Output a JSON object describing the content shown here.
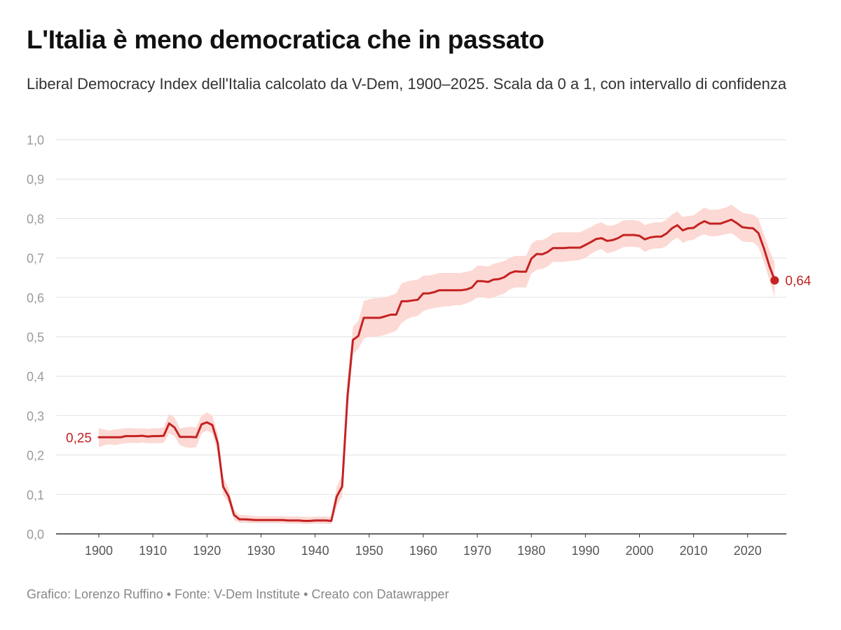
{
  "chart_data": {
    "type": "line",
    "title": "L'Italia è meno democratica che in passato",
    "subtitle": "Liberal Democracy Index dell'Italia calcolato da V-Dem, 1900–2025. Scala da 0 a 1, con intervallo di confidenza",
    "xlabel": "",
    "ylabel": "",
    "xlim": [
      1900,
      2025
    ],
    "ylim": [
      0,
      1
    ],
    "x_ticks": [
      1900,
      1910,
      1920,
      1930,
      1940,
      1950,
      1960,
      1970,
      1980,
      1990,
      2000,
      2010,
      2020
    ],
    "y_ticks": [
      0,
      0.1,
      0.2,
      0.3,
      0.4,
      0.5,
      0.6,
      0.7,
      0.8,
      0.9,
      1.0
    ],
    "y_tick_labels": [
      "0,0",
      "0,1",
      "0,2",
      "0,3",
      "0,4",
      "0,5",
      "0,6",
      "0,7",
      "0,8",
      "0,9",
      "1,0"
    ],
    "grid": true,
    "line_color": "#c42222",
    "band_color": "#fcd9d4",
    "start_label": "0,25",
    "end_label": "0,64",
    "series": [
      {
        "x": [
          1900,
          1901,
          1902,
          1903,
          1904,
          1905,
          1906,
          1907,
          1908,
          1909,
          1910,
          1911,
          1912,
          1913,
          1914,
          1915,
          1916,
          1917,
          1918,
          1919,
          1920,
          1921,
          1922,
          1923,
          1924,
          1925,
          1926,
          1927,
          1928,
          1929,
          1930,
          1931,
          1932,
          1933,
          1934,
          1935,
          1936,
          1937,
          1938,
          1939,
          1940,
          1941,
          1942,
          1943,
          1944,
          1945,
          1946,
          1947,
          1948,
          1949,
          1950,
          1951,
          1952,
          1953,
          1954,
          1955,
          1956,
          1957,
          1958,
          1959,
          1960,
          1961,
          1962,
          1963,
          1964,
          1965,
          1966,
          1967,
          1968,
          1969,
          1970,
          1971,
          1972,
          1973,
          1974,
          1975,
          1976,
          1977,
          1978,
          1979,
          1980,
          1981,
          1982,
          1983,
          1984,
          1985,
          1986,
          1987,
          1988,
          1989,
          1990,
          1991,
          1992,
          1993,
          1994,
          1995,
          1996,
          1997,
          1998,
          1999,
          2000,
          2001,
          2002,
          2003,
          2004,
          2005,
          2006,
          2007,
          2008,
          2009,
          2010,
          2011,
          2012,
          2013,
          2014,
          2015,
          2016,
          2017,
          2018,
          2019,
          2020,
          2021,
          2022,
          2023,
          2024,
          2025
        ],
        "y": [
          0.245,
          0.245,
          0.245,
          0.245,
          0.245,
          0.248,
          0.248,
          0.248,
          0.249,
          0.247,
          0.248,
          0.248,
          0.249,
          0.28,
          0.27,
          0.246,
          0.246,
          0.246,
          0.245,
          0.278,
          0.283,
          0.276,
          0.23,
          0.12,
          0.095,
          0.048,
          0.037,
          0.037,
          0.036,
          0.035,
          0.035,
          0.035,
          0.035,
          0.035,
          0.035,
          0.034,
          0.034,
          0.034,
          0.033,
          0.033,
          0.034,
          0.034,
          0.034,
          0.033,
          0.095,
          0.12,
          0.35,
          0.492,
          0.502,
          0.548,
          0.548,
          0.548,
          0.548,
          0.552,
          0.556,
          0.556,
          0.59,
          0.59,
          0.592,
          0.594,
          0.61,
          0.61,
          0.613,
          0.618,
          0.618,
          0.618,
          0.618,
          0.618,
          0.62,
          0.625,
          0.641,
          0.641,
          0.639,
          0.645,
          0.646,
          0.651,
          0.661,
          0.666,
          0.665,
          0.665,
          0.698,
          0.71,
          0.709,
          0.715,
          0.725,
          0.725,
          0.725,
          0.726,
          0.726,
          0.726,
          0.733,
          0.74,
          0.748,
          0.75,
          0.743,
          0.745,
          0.75,
          0.758,
          0.758,
          0.758,
          0.756,
          0.747,
          0.752,
          0.754,
          0.754,
          0.762,
          0.775,
          0.783,
          0.77,
          0.775,
          0.776,
          0.786,
          0.793,
          0.787,
          0.787,
          0.787,
          0.792,
          0.797,
          0.788,
          0.778,
          0.776,
          0.775,
          0.763,
          0.725,
          0.68,
          0.643
        ],
        "lower": [
          0.22,
          0.225,
          0.227,
          0.225,
          0.228,
          0.23,
          0.231,
          0.23,
          0.232,
          0.23,
          0.23,
          0.23,
          0.231,
          0.255,
          0.248,
          0.225,
          0.22,
          0.218,
          0.22,
          0.255,
          0.262,
          0.255,
          0.205,
          0.098,
          0.08,
          0.035,
          0.028,
          0.028,
          0.027,
          0.027,
          0.027,
          0.027,
          0.027,
          0.027,
          0.027,
          0.026,
          0.026,
          0.026,
          0.025,
          0.025,
          0.026,
          0.026,
          0.026,
          0.025,
          0.07,
          0.095,
          0.31,
          0.455,
          0.47,
          0.495,
          0.5,
          0.5,
          0.502,
          0.505,
          0.51,
          0.515,
          0.535,
          0.545,
          0.55,
          0.553,
          0.565,
          0.57,
          0.573,
          0.575,
          0.577,
          0.578,
          0.58,
          0.58,
          0.585,
          0.59,
          0.6,
          0.6,
          0.597,
          0.6,
          0.605,
          0.61,
          0.62,
          0.625,
          0.625,
          0.625,
          0.66,
          0.67,
          0.672,
          0.678,
          0.69,
          0.69,
          0.69,
          0.692,
          0.693,
          0.695,
          0.7,
          0.71,
          0.718,
          0.722,
          0.712,
          0.715,
          0.72,
          0.727,
          0.728,
          0.728,
          0.726,
          0.715,
          0.722,
          0.724,
          0.724,
          0.73,
          0.743,
          0.752,
          0.738,
          0.744,
          0.746,
          0.755,
          0.76,
          0.755,
          0.755,
          0.757,
          0.76,
          0.763,
          0.753,
          0.742,
          0.74,
          0.74,
          0.728,
          0.69,
          0.645,
          0.6
        ],
        "upper": [
          0.268,
          0.265,
          0.262,
          0.265,
          0.266,
          0.268,
          0.268,
          0.267,
          0.268,
          0.266,
          0.268,
          0.268,
          0.27,
          0.305,
          0.295,
          0.268,
          0.27,
          0.272,
          0.27,
          0.3,
          0.308,
          0.3,
          0.255,
          0.145,
          0.115,
          0.062,
          0.048,
          0.048,
          0.046,
          0.045,
          0.045,
          0.045,
          0.045,
          0.045,
          0.045,
          0.044,
          0.044,
          0.044,
          0.043,
          0.043,
          0.044,
          0.044,
          0.044,
          0.043,
          0.12,
          0.148,
          0.39,
          0.525,
          0.54,
          0.59,
          0.595,
          0.598,
          0.598,
          0.6,
          0.605,
          0.61,
          0.635,
          0.64,
          0.643,
          0.645,
          0.655,
          0.655,
          0.658,
          0.662,
          0.662,
          0.662,
          0.662,
          0.662,
          0.665,
          0.668,
          0.68,
          0.68,
          0.678,
          0.685,
          0.688,
          0.692,
          0.7,
          0.705,
          0.705,
          0.705,
          0.735,
          0.745,
          0.745,
          0.752,
          0.762,
          0.765,
          0.765,
          0.765,
          0.765,
          0.765,
          0.772,
          0.778,
          0.786,
          0.79,
          0.782,
          0.782,
          0.787,
          0.795,
          0.796,
          0.796,
          0.793,
          0.783,
          0.788,
          0.79,
          0.79,
          0.797,
          0.81,
          0.818,
          0.804,
          0.806,
          0.808,
          0.818,
          0.828,
          0.822,
          0.822,
          0.824,
          0.828,
          0.835,
          0.825,
          0.815,
          0.812,
          0.81,
          0.8,
          0.76,
          0.72,
          0.688
        ]
      }
    ]
  },
  "footer": "Grafico: Lorenzo Ruffino • Fonte: V-Dem Institute • Creato con Datawrapper"
}
